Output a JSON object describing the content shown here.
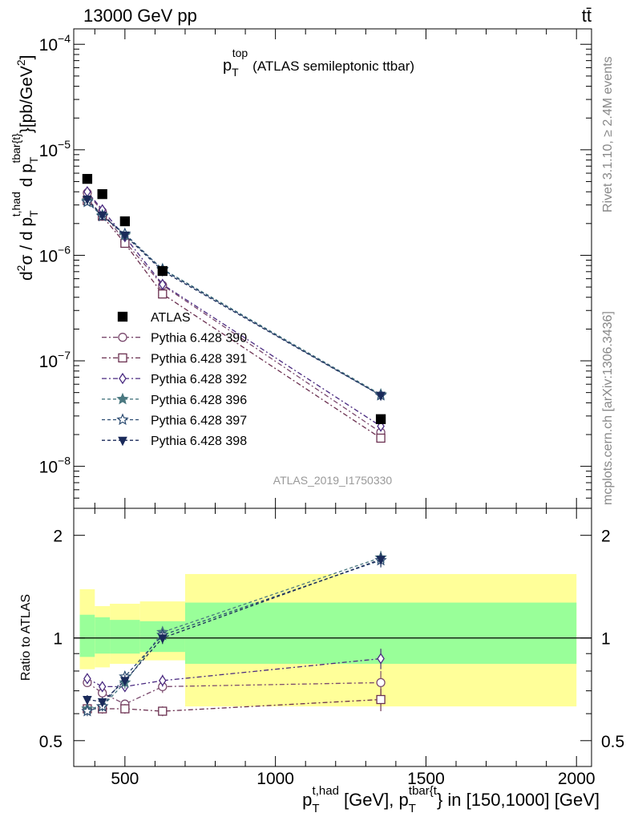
{
  "header": {
    "energy": "13000 GeV pp",
    "process": "tt̄"
  },
  "side_labels": {
    "rivet": "Rivet 3.1.10, ≥ 2.4M events",
    "mcplots": "mcplots.cern.ch [arXiv:1306.3436]"
  },
  "colors": {
    "ratio_band_inner": "#99ff99",
    "ratio_band_outer": "#ffff99"
  },
  "chart_data": [
    {
      "type": "scatter",
      "title": "p_T^top (ATLAS semileptonic ttbar)",
      "title_main": "p",
      "title_sup": "top",
      "title_sub": "T",
      "title_tail": "(ATLAS semileptonic ttbar)",
      "watermark": "ATLAS_2019_I1750330",
      "ylabel": "d²σ / d p_T^{t,had} d p_T^{tbar{t}} [pb/GeV²]",
      "ylabel_parts": {
        "d2sigma": "d",
        "exp2": "2",
        "sigma": "σ / d p",
        "sub_t1": "T",
        "sup_t1": "t,had",
        "dp2": " d p",
        "sub_t2": "T",
        "sup_t2": "tbar{t}",
        "units": "}[pb/GeV",
        "units_exp": "2",
        "units_close": "]"
      },
      "y_scale": "log",
      "ylim": [
        4e-09,
        0.00014
      ],
      "xlim": [
        330,
        2050
      ],
      "y_ticks": [
        {
          "value": 1e-08,
          "base": "10",
          "exp": "−8"
        },
        {
          "value": 1e-07,
          "base": "10",
          "exp": "−7"
        },
        {
          "value": 1e-06,
          "base": "10",
          "exp": "−6"
        },
        {
          "value": 1e-05,
          "base": "10",
          "exp": "−5"
        },
        {
          "value": 0.0001,
          "base": "10",
          "exp": "−4"
        }
      ],
      "legend_placement": "middle-left",
      "series": [
        {
          "name": "ATLAS",
          "marker": "square-filled",
          "color": "#000000",
          "dash": "none",
          "x": [
            375,
            425,
            500,
            625,
            1350
          ],
          "y": [
            5.3e-06,
            3.8e-06,
            2.1e-06,
            7.1e-07,
            2.8e-08
          ]
        },
        {
          "name": "Pythia 6.428 390",
          "marker": "circle-open",
          "color": "#7b4a6e",
          "dash": "6,3,2,3",
          "x": [
            375,
            425,
            500,
            625,
            1350
          ],
          "y": [
            3.9e-06,
            2.6e-06,
            1.35e-06,
            5.2e-07,
            2.1e-08
          ]
        },
        {
          "name": "Pythia 6.428 391",
          "marker": "square-open",
          "color": "#6b3050",
          "dash": "6,3,2,3",
          "x": [
            375,
            425,
            500,
            625,
            1350
          ],
          "y": [
            3.3e-06,
            2.35e-06,
            1.3e-06,
            4.3e-07,
            1.85e-08
          ]
        },
        {
          "name": "Pythia 6.428 392",
          "marker": "diamond-open",
          "color": "#4a2a80",
          "dash": "6,3,2,3",
          "x": [
            375,
            425,
            500,
            625,
            1350
          ],
          "y": [
            4e-06,
            2.7e-06,
            1.5e-06,
            5.3e-07,
            2.4e-08
          ]
        },
        {
          "name": "Pythia 6.428 396",
          "marker": "star-filled",
          "color": "#4a7880",
          "dash": "4,3",
          "x": [
            375,
            425,
            500,
            625,
            1350
          ],
          "y": [
            3.3e-06,
            2.4e-06,
            1.55e-06,
            7.4e-07,
            4.8e-08
          ]
        },
        {
          "name": "Pythia 6.428 397",
          "marker": "star-open",
          "color": "#2a4a70",
          "dash": "4,3",
          "x": [
            375,
            425,
            500,
            625,
            1350
          ],
          "y": [
            3.2e-06,
            2.35e-06,
            1.6e-06,
            7.3e-07,
            4.7e-08
          ]
        },
        {
          "name": "Pythia 6.428 398",
          "marker": "triangle-down-filled",
          "color": "#1a2a5a",
          "dash": "4,3",
          "x": [
            375,
            425,
            500,
            625,
            1350
          ],
          "y": [
            3.4e-06,
            2.4e-06,
            1.55e-06,
            7.1e-07,
            4.7e-08
          ]
        }
      ]
    },
    {
      "type": "scatter",
      "ylabel": "Ratio to ATLAS",
      "y_scale": "log",
      "ylim": [
        0.42,
        2.4
      ],
      "xlim": [
        330,
        2050
      ],
      "xlabel": "p_T^{t,had} [GeV], p_T^{tbar{t}} in [150,1000] [GeV]",
      "xlabel_parts": {
        "p1": "p",
        "sub1": "T",
        "sup1": "t,had",
        "mid": " [GeV], p",
        "sub2": "T",
        "sup2": "tbar{t",
        "tail": "} in [150,1000] [GeV]"
      },
      "x_ticks": [
        500,
        1000,
        1500,
        2000
      ],
      "y_ticks": [
        0.5,
        1,
        2
      ],
      "reference_line": 1,
      "bands": [
        {
          "x0": 350,
          "x1": 400,
          "inner": [
            0.88,
            1.17
          ],
          "outer": [
            0.81,
            1.39
          ]
        },
        {
          "x0": 400,
          "x1": 450,
          "inner": [
            0.9,
            1.15
          ],
          "outer": [
            0.82,
            1.24
          ]
        },
        {
          "x0": 450,
          "x1": 550,
          "inner": [
            0.9,
            1.13
          ],
          "outer": [
            0.84,
            1.26
          ]
        },
        {
          "x0": 550,
          "x1": 700,
          "inner": [
            0.91,
            1.12
          ],
          "outer": [
            0.86,
            1.28
          ]
        },
        {
          "x0": 700,
          "x1": 2000,
          "inner": [
            0.84,
            1.27
          ],
          "outer": [
            0.63,
            1.54
          ]
        }
      ],
      "series": [
        {
          "name": "Pythia 6.428 390",
          "x": [
            375,
            425,
            500,
            625,
            1350
          ],
          "y": [
            0.74,
            0.69,
            0.64,
            0.72,
            0.74
          ],
          "err": [
            0.02,
            0.02,
            0.02,
            0.03,
            0.06
          ]
        },
        {
          "name": "Pythia 6.428 391",
          "x": [
            375,
            425,
            500,
            625,
            1350
          ],
          "y": [
            0.62,
            0.62,
            0.62,
            0.61,
            0.66
          ],
          "err": [
            0.02,
            0.02,
            0.02,
            0.02,
            0.05
          ]
        },
        {
          "name": "Pythia 6.428 392",
          "x": [
            375,
            425,
            500,
            625,
            1350
          ],
          "y": [
            0.76,
            0.72,
            0.72,
            0.75,
            0.87
          ],
          "err": [
            0.02,
            0.02,
            0.02,
            0.03,
            0.06
          ]
        },
        {
          "name": "Pythia 6.428 396",
          "x": [
            375,
            425,
            500,
            625,
            1350
          ],
          "y": [
            0.62,
            0.63,
            0.74,
            1.04,
            1.72
          ],
          "err": [
            0.02,
            0.02,
            0.03,
            0.04,
            0.08
          ]
        },
        {
          "name": "Pythia 6.428 397",
          "x": [
            375,
            425,
            500,
            625,
            1350
          ],
          "y": [
            0.61,
            0.63,
            0.77,
            1.02,
            1.69
          ],
          "err": [
            0.02,
            0.02,
            0.03,
            0.04,
            0.08
          ]
        },
        {
          "name": "Pythia 6.428 398",
          "x": [
            375,
            425,
            500,
            625,
            1350
          ],
          "y": [
            0.66,
            0.65,
            0.75,
            1.0,
            1.7
          ],
          "err": [
            0.02,
            0.02,
            0.03,
            0.04,
            0.08
          ]
        }
      ]
    }
  ]
}
